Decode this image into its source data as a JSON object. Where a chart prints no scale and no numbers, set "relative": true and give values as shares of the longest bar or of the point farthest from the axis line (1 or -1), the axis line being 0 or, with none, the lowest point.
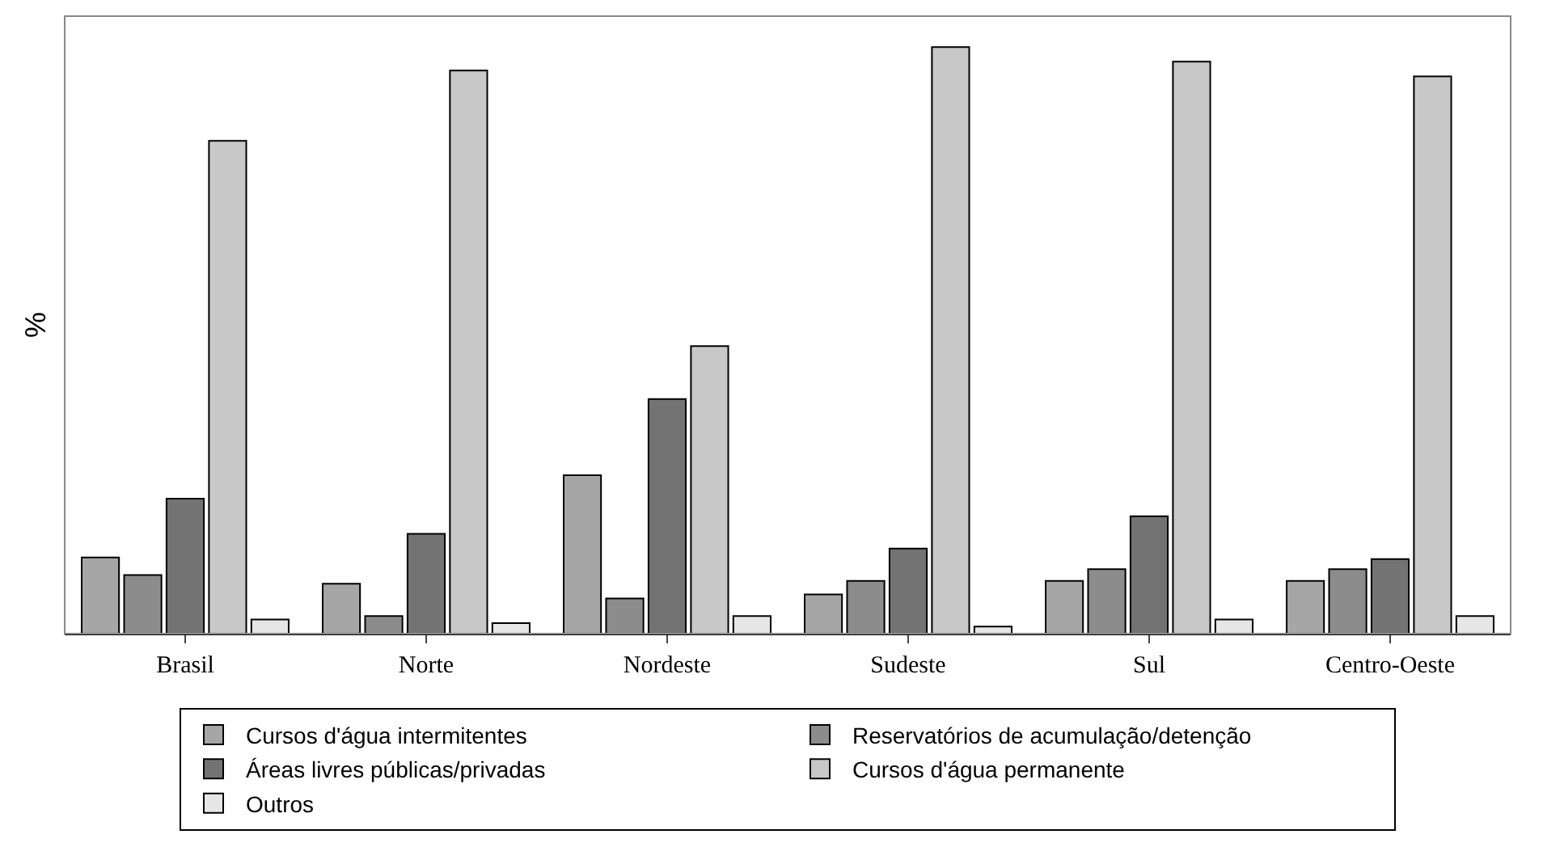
{
  "chart_data": {
    "type": "bar",
    "relative": true,
    "ylabel": "%",
    "legend": "bottom",
    "categories": [
      "Brasil",
      "Norte",
      "Nordeste",
      "Sudeste",
      "Sul",
      "Centro-Oeste"
    ],
    "series": [
      {
        "name": "Cursos d'água intermitentes",
        "color": "#a6a6a6",
        "values": [
          0.13,
          0.085,
          0.27,
          0.067,
          0.09,
          0.09
        ]
      },
      {
        "name": "Reservatórios de acumulação/detenção",
        "color": "#8c8c8c",
        "values": [
          0.1,
          0.03,
          0.06,
          0.09,
          0.11,
          0.11
        ]
      },
      {
        "name": "Áreas livres públicas/privadas",
        "color": "#737373",
        "values": [
          0.23,
          0.17,
          0.4,
          0.145,
          0.2,
          0.127
        ]
      },
      {
        "name": "Cursos d'água permanente",
        "color": "#c8c8c8",
        "values": [
          0.84,
          0.96,
          0.49,
          1,
          0.975,
          0.95
        ]
      },
      {
        "name": "Outros",
        "color": "#e6e6e6",
        "values": [
          0.024,
          0.018,
          0.03,
          0.012,
          0.024,
          0.03
        ]
      }
    ]
  }
}
